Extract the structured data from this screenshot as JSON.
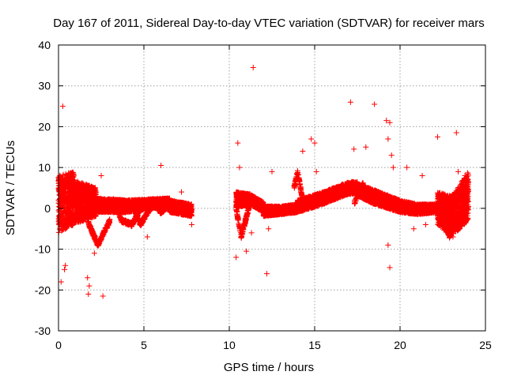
{
  "chart_data": {
    "type": "scatter",
    "title": "Day 167 of 2011, Sidereal Day-to-day VTEC variation (SDTVAR) for receiver mars",
    "xlabel": "GPS time / hours",
    "ylabel": "SDTVAR / TECUs",
    "xlim": [
      0,
      25
    ],
    "ylim": [
      -30,
      40
    ],
    "xticks": [
      0,
      5,
      10,
      15,
      20,
      25
    ],
    "xtick_labels": [
      "0",
      "5",
      "10",
      "15",
      "20",
      "25"
    ],
    "yticks": [
      -30,
      -20,
      -10,
      0,
      10,
      20,
      30,
      40
    ],
    "ytick_labels": [
      "-30",
      "-20",
      "-10",
      "0",
      "10",
      "20",
      "30",
      "40"
    ],
    "grid": true,
    "marker": "+",
    "color": "#ff0000",
    "dense_bands": [
      {
        "segment": "0-0.9h dense block",
        "x": [
          0.0,
          0.9
        ],
        "y_low": [
          -6,
          -4
        ],
        "y_high": [
          8,
          9
        ]
      },
      {
        "segment": "0.9-2.2h dense block",
        "x": [
          0.9,
          2.2
        ],
        "y_low": [
          -4,
          -2
        ],
        "y_high": [
          7,
          5
        ]
      },
      {
        "segment": "2.2-6.5h band",
        "x": [
          2.2,
          4.0,
          6.5
        ],
        "y_low": [
          -1,
          -1,
          0.5
        ],
        "y_high": [
          2.5,
          2,
          2.5
        ]
      },
      {
        "segment": "6.5-7.8h tail",
        "x": [
          6.5,
          7.8
        ],
        "y_low": [
          -1,
          -2
        ],
        "y_high": [
          2,
          1
        ]
      },
      {
        "segment": "10.4-12h band",
        "x": [
          10.4,
          11.2,
          12.0
        ],
        "y_low": [
          0,
          1,
          -1
        ],
        "y_high": [
          4,
          3.5,
          1.5
        ]
      },
      {
        "segment": "12-14h band",
        "x": [
          12.0,
          13.0,
          14.0
        ],
        "y_low": [
          -2,
          -1.5,
          -1
        ],
        "y_high": [
          0.5,
          0.5,
          1
        ]
      },
      {
        "segment": "14-17.5h rising band",
        "x": [
          14.0,
          15.5,
          17.0,
          17.5
        ],
        "y_low": [
          -1,
          1,
          3.5,
          3.5
        ],
        "y_high": [
          2,
          4,
          6.5,
          6.5
        ]
      },
      {
        "segment": "17.5-20h falling band",
        "x": [
          17.5,
          18.5,
          20.0
        ],
        "y_low": [
          3,
          1,
          -1
        ],
        "y_high": [
          6,
          4.5,
          2
        ]
      },
      {
        "segment": "20-22.2h flat band",
        "x": [
          20.0,
          21.0,
          22.2
        ],
        "y_low": [
          -1,
          -1.5,
          -1
        ],
        "y_high": [
          2,
          1,
          1
        ]
      },
      {
        "segment": "22.2-24h block",
        "x": [
          22.2,
          23.0,
          24.0
        ],
        "y_low": [
          -4,
          -7,
          -3
        ],
        "y_high": [
          4,
          3,
          9
        ]
      }
    ],
    "arcs": [
      {
        "x": [
          1.7,
          2.3,
          3.0
        ],
        "y": [
          -3,
          -9,
          -3
        ]
      },
      {
        "x": [
          3.2,
          3.7,
          4.3,
          5.0
        ],
        "y": [
          2,
          -3,
          -4,
          1
        ]
      },
      {
        "x": [
          4.3,
          4.8,
          5.5
        ],
        "y": [
          1,
          -4,
          1
        ]
      },
      {
        "x": [
          5.5,
          6.0,
          6.5
        ],
        "y": [
          2,
          -1,
          1
        ]
      },
      {
        "x": [
          10.4,
          10.7,
          11.2
        ],
        "y": [
          0,
          -7,
          1
        ]
      },
      {
        "x": [
          13.8,
          14.0,
          14.3
        ],
        "y": [
          5,
          9,
          2
        ]
      },
      {
        "x": [
          17.3,
          17.8,
          18.3
        ],
        "y": [
          1,
          6,
          2
        ]
      },
      {
        "x": [
          22.5,
          22.9,
          23.3
        ],
        "y": [
          -2,
          -7,
          -2
        ]
      }
    ],
    "outliers": [
      {
        "x": 0.25,
        "y": 25
      },
      {
        "x": 0.15,
        "y": -18
      },
      {
        "x": 0.35,
        "y": -15
      },
      {
        "x": 0.4,
        "y": -14
      },
      {
        "x": 1.7,
        "y": -17
      },
      {
        "x": 1.75,
        "y": -21
      },
      {
        "x": 1.8,
        "y": -19
      },
      {
        "x": 2.6,
        "y": -21.5
      },
      {
        "x": 2.5,
        "y": 8
      },
      {
        "x": 2.1,
        "y": -11
      },
      {
        "x": 6.0,
        "y": 10.5
      },
      {
        "x": 7.2,
        "y": 4
      },
      {
        "x": 7.8,
        "y": -4
      },
      {
        "x": 5.2,
        "y": -7
      },
      {
        "x": 10.4,
        "y": -12
      },
      {
        "x": 10.5,
        "y": 16
      },
      {
        "x": 10.6,
        "y": 10
      },
      {
        "x": 11.0,
        "y": -10.5
      },
      {
        "x": 11.3,
        "y": -6
      },
      {
        "x": 11.4,
        "y": 34.5
      },
      {
        "x": 12.2,
        "y": -16
      },
      {
        "x": 12.3,
        "y": -5
      },
      {
        "x": 12.5,
        "y": 9
      },
      {
        "x": 14.3,
        "y": 14
      },
      {
        "x": 14.8,
        "y": 17
      },
      {
        "x": 15.0,
        "y": 16
      },
      {
        "x": 15.1,
        "y": 9
      },
      {
        "x": 17.1,
        "y": 26
      },
      {
        "x": 17.3,
        "y": 14.5
      },
      {
        "x": 18.0,
        "y": 15
      },
      {
        "x": 18.5,
        "y": 25.5
      },
      {
        "x": 19.2,
        "y": 21.5
      },
      {
        "x": 19.4,
        "y": 21
      },
      {
        "x": 19.3,
        "y": 17
      },
      {
        "x": 19.5,
        "y": 13
      },
      {
        "x": 19.3,
        "y": -9
      },
      {
        "x": 19.4,
        "y": -14.5
      },
      {
        "x": 19.6,
        "y": 10
      },
      {
        "x": 20.4,
        "y": 10
      },
      {
        "x": 20.8,
        "y": -5
      },
      {
        "x": 21.5,
        "y": -4
      },
      {
        "x": 22.2,
        "y": 17.5
      },
      {
        "x": 23.1,
        "y": -7
      },
      {
        "x": 23.3,
        "y": 18.5
      },
      {
        "x": 23.4,
        "y": 9
      },
      {
        "x": 23.8,
        "y": 8
      },
      {
        "x": 21.3,
        "y": 8
      }
    ]
  }
}
